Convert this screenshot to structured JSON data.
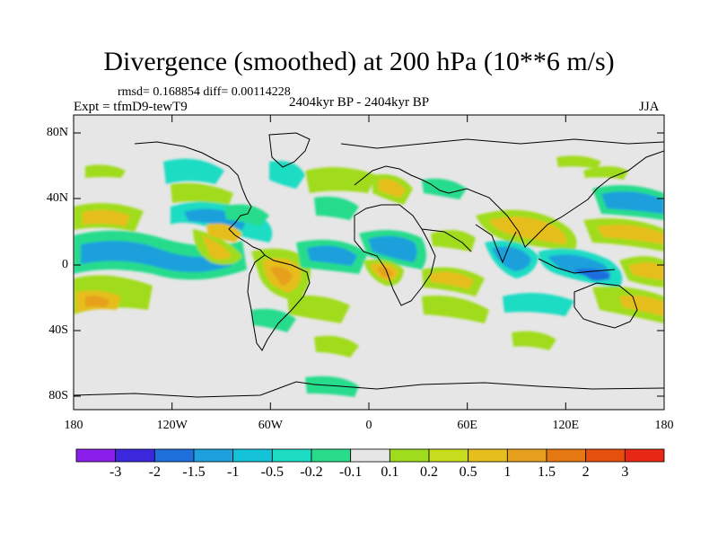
{
  "title": "Divergence (smoothed) at 200 hPa (10**6 m/s)",
  "stats": "rmsd= 0.168854 diff= 0.00114228",
  "experiment": "Expt = tfmD9-tewT9",
  "period": "2404kyr BP - 2404kyr BP",
  "season": "JJA",
  "lat_labels": [
    "80N",
    "40N",
    "0",
    "40S",
    "80S"
  ],
  "lon_labels": [
    "180",
    "120W",
    "60W",
    "0",
    "60E",
    "120E",
    "180"
  ],
  "colorbar": {
    "colors": [
      "#8c1eeb",
      "#3c28dc",
      "#1e6edc",
      "#1ea0dc",
      "#14c3d7",
      "#1edcc3",
      "#28dc8c",
      "#e6e6e6",
      "#a0dc1e",
      "#c8dc1e",
      "#e6be1e",
      "#e6a01e",
      "#e67814",
      "#e6500f",
      "#e62814"
    ],
    "labels": [
      "-3",
      "-2",
      "-1.5",
      "-1",
      "-0.5",
      "-0.2",
      "-0.1",
      "0.1",
      "0.2",
      "0.5",
      "1",
      "1.5",
      "2",
      "3"
    ]
  }
}
